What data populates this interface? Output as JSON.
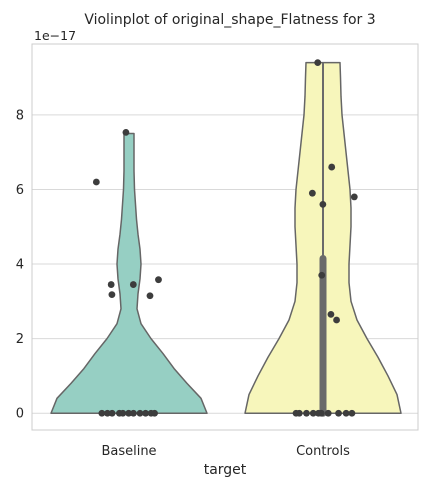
{
  "chart_data": {
    "type": "violin",
    "title": "Violinplot of original_shape_Flatness for 3",
    "xlabel": "target",
    "ylabel": "",
    "y_multiplier_label": "1e−17",
    "categories": [
      "Baseline",
      "Controls"
    ],
    "yticks": [
      0,
      2,
      4,
      6,
      8
    ],
    "ylim": [
      -0.45,
      9.9
    ],
    "grid": true,
    "violins": [
      {
        "category": "Baseline",
        "color": "#96cfc3",
        "edge_color": "#666666",
        "max": 7.5,
        "profile": [
          [
            0,
            0.78
          ],
          [
            0.4,
            0.72
          ],
          [
            0.8,
            0.58
          ],
          [
            1.2,
            0.45
          ],
          [
            1.6,
            0.34
          ],
          [
            2.0,
            0.22
          ],
          [
            2.4,
            0.12
          ],
          [
            2.8,
            0.08
          ],
          [
            3.2,
            0.09
          ],
          [
            3.6,
            0.11
          ],
          [
            4.0,
            0.12
          ],
          [
            4.4,
            0.11
          ],
          [
            4.8,
            0.09
          ],
          [
            5.2,
            0.075
          ],
          [
            5.6,
            0.065
          ],
          [
            6.0,
            0.055
          ],
          [
            6.5,
            0.05
          ],
          [
            7.0,
            0.05
          ],
          [
            7.5,
            0.05
          ]
        ],
        "box": {
          "q1": 0,
          "median": 0,
          "q3": 0
        },
        "points": [
          7.53,
          6.2,
          3.45,
          3.58,
          3.45,
          3.18,
          3.15,
          0,
          0,
          0,
          0,
          0,
          0,
          0,
          0,
          0,
          0,
          0
        ]
      },
      {
        "category": "Controls",
        "color": "#f7f6bb",
        "edge_color": "#666666",
        "max": 9.4,
        "profile": [
          [
            0,
            0.78
          ],
          [
            0.5,
            0.74
          ],
          [
            1.0,
            0.65
          ],
          [
            1.5,
            0.55
          ],
          [
            2.0,
            0.44
          ],
          [
            2.5,
            0.34
          ],
          [
            3.0,
            0.28
          ],
          [
            3.5,
            0.26
          ],
          [
            4.0,
            0.26
          ],
          [
            4.5,
            0.27
          ],
          [
            5.0,
            0.28
          ],
          [
            5.5,
            0.28
          ],
          [
            6.0,
            0.27
          ],
          [
            6.5,
            0.25
          ],
          [
            7.0,
            0.23
          ],
          [
            7.5,
            0.21
          ],
          [
            8.0,
            0.19
          ],
          [
            8.5,
            0.18
          ],
          [
            9.0,
            0.175
          ],
          [
            9.4,
            0.17
          ]
        ],
        "box": {
          "q1": 0,
          "median": 0,
          "q3": 4.15
        },
        "points": [
          9.4,
          6.6,
          5.9,
          5.8,
          5.6,
          3.7,
          2.65,
          2.5,
          0,
          0,
          0,
          0,
          0,
          0,
          0,
          0,
          0,
          0
        ]
      }
    ]
  }
}
